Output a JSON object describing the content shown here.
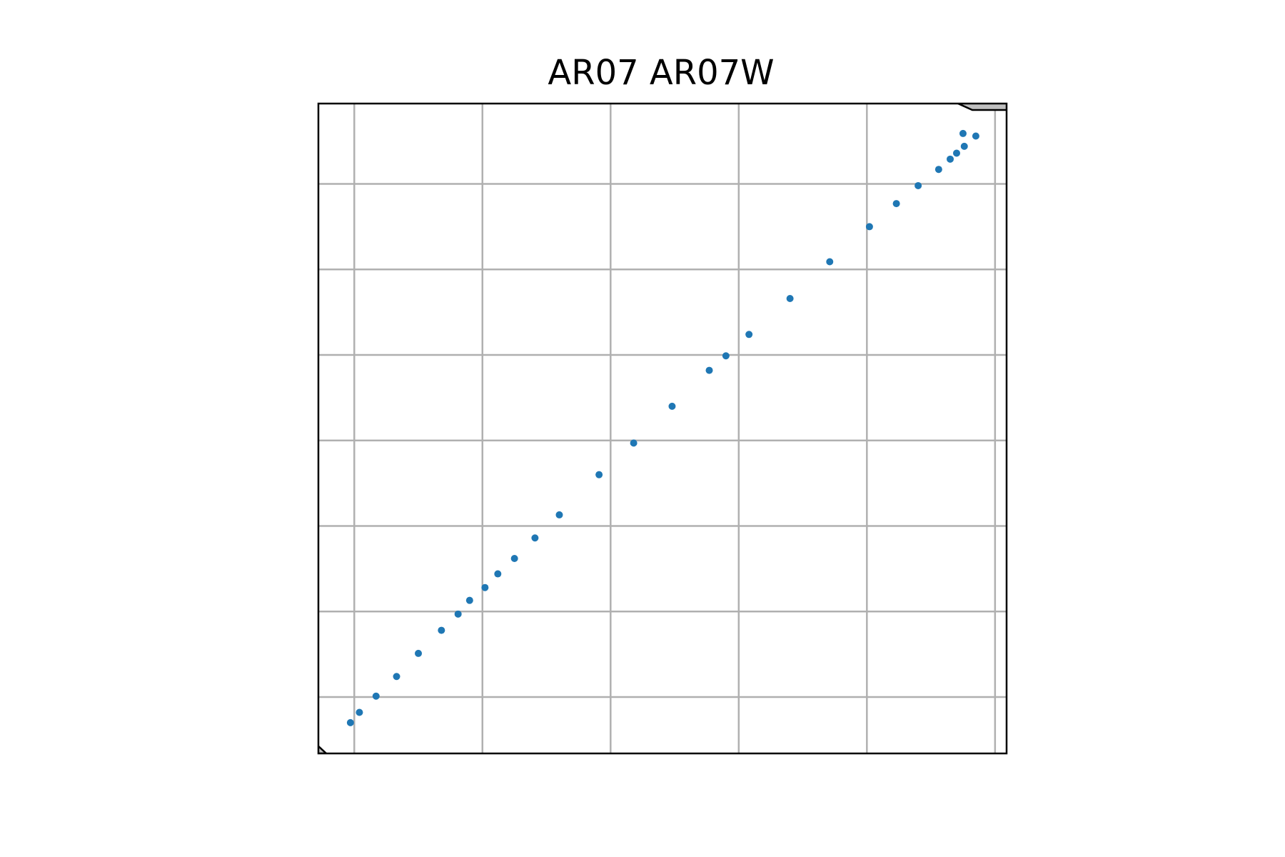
{
  "chart_data": {
    "type": "scatter",
    "title": "AR07 AR07W",
    "xlabel": "",
    "ylabel": "",
    "x_gridlines": [
      0,
      1,
      2,
      3,
      4,
      5
    ],
    "y_gridlines": [
      1,
      2,
      3,
      4,
      5,
      6,
      7
    ],
    "xlim": [
      -0.28,
      5.09
    ],
    "ylim": [
      0.34,
      7.94
    ],
    "grid": true,
    "tick_labels_visible": false,
    "colors": {
      "points": "#1f77b4",
      "grid": "#b0b0b0",
      "frame": "#000000",
      "land": "#bfbfbf"
    },
    "points": [
      {
        "x": -0.03,
        "y": 0.7
      },
      {
        "x": 0.04,
        "y": 0.82
      },
      {
        "x": 0.17,
        "y": 1.01
      },
      {
        "x": 0.33,
        "y": 1.24
      },
      {
        "x": 0.5,
        "y": 1.51
      },
      {
        "x": 0.68,
        "y": 1.78
      },
      {
        "x": 0.81,
        "y": 1.97
      },
      {
        "x": 0.9,
        "y": 2.13
      },
      {
        "x": 1.02,
        "y": 2.28
      },
      {
        "x": 1.12,
        "y": 2.44
      },
      {
        "x": 1.25,
        "y": 2.62
      },
      {
        "x": 1.41,
        "y": 2.86
      },
      {
        "x": 1.6,
        "y": 3.13
      },
      {
        "x": 1.91,
        "y": 3.6
      },
      {
        "x": 2.18,
        "y": 3.97
      },
      {
        "x": 2.48,
        "y": 4.4
      },
      {
        "x": 2.77,
        "y": 4.82
      },
      {
        "x": 2.9,
        "y": 4.99
      },
      {
        "x": 3.08,
        "y": 5.24
      },
      {
        "x": 3.4,
        "y": 5.66
      },
      {
        "x": 3.71,
        "y": 6.09
      },
      {
        "x": 4.02,
        "y": 6.5
      },
      {
        "x": 4.23,
        "y": 6.77
      },
      {
        "x": 4.4,
        "y": 6.98
      },
      {
        "x": 4.56,
        "y": 7.17
      },
      {
        "x": 4.65,
        "y": 7.29
      },
      {
        "x": 4.7,
        "y": 7.36
      },
      {
        "x": 4.76,
        "y": 7.44
      },
      {
        "x": 4.75,
        "y": 7.59
      },
      {
        "x": 4.85,
        "y": 7.56
      }
    ]
  }
}
